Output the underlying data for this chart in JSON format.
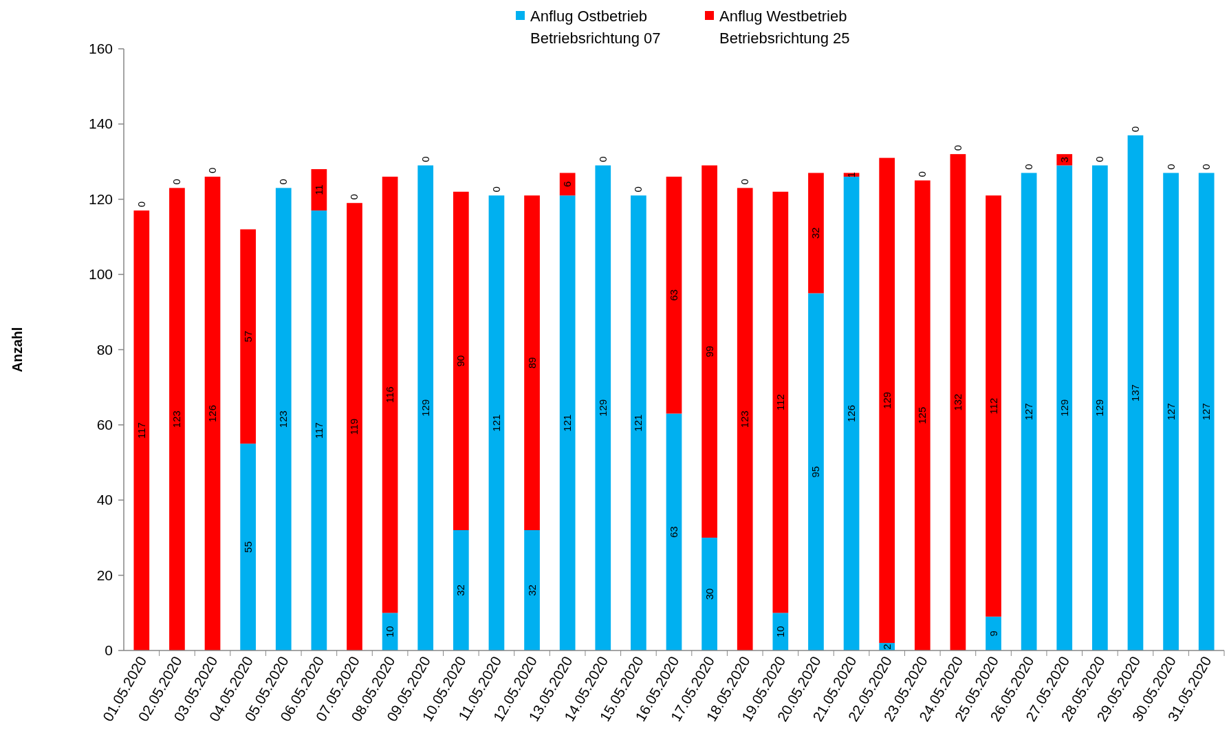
{
  "chart_data": {
    "type": "bar",
    "stacked": true,
    "ylabel": "Anzahl",
    "categories": [
      "01.05.2020",
      "02.05.2020",
      "03.05.2020",
      "04.05.2020",
      "05.05.2020",
      "06.05.2020",
      "07.05.2020",
      "08.05.2020",
      "09.05.2020",
      "10.05.2020",
      "11.05.2020",
      "12.05.2020",
      "13.05.2020",
      "14.05.2020",
      "15.05.2020",
      "16.05.2020",
      "17.05.2020",
      "18.05.2020",
      "19.05.2020",
      "20.05.2020",
      "21.05.2020",
      "22.05.2020",
      "23.05.2020",
      "24.05.2020",
      "25.05.2020",
      "26.05.2020",
      "27.05.2020",
      "28.05.2020",
      "29.05.2020",
      "30.05.2020",
      "31.05.2020"
    ],
    "series": [
      {
        "name": "Anflug Ostbetrieb\nBetriebsrichtung 07",
        "color": "#00b0f0",
        "values": [
          0,
          0,
          0,
          55,
          123,
          117,
          0,
          10,
          129,
          32,
          121,
          32,
          121,
          129,
          121,
          63,
          30,
          0,
          10,
          95,
          126,
          2,
          0,
          0,
          9,
          127,
          129,
          129,
          137,
          127,
          127
        ]
      },
      {
        "name": "Anflug Westbetrieb\nBetriebsrichtung 25",
        "color": "#ff0000",
        "values": [
          117,
          123,
          126,
          57,
          0,
          11,
          119,
          116,
          0,
          90,
          0,
          89,
          6,
          0,
          0,
          63,
          99,
          123,
          112,
          32,
          1,
          129,
          125,
          132,
          112,
          0,
          3,
          0,
          0,
          0,
          0
        ]
      }
    ],
    "ylim": [
      0,
      160
    ],
    "yticks": [
      0,
      20,
      40,
      60,
      80,
      100,
      120,
      140,
      160
    ],
    "grid": false,
    "legend": "top",
    "data_labels": true
  }
}
